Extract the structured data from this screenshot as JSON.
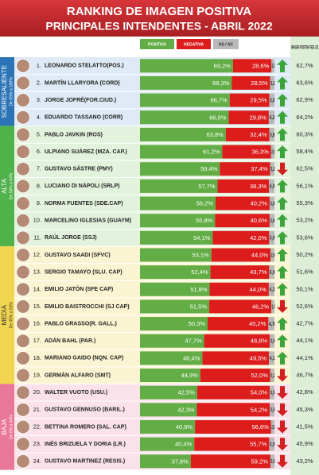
{
  "chart_data": {
    "type": "bar",
    "orientation": "horizontal",
    "stacked": true,
    "title": "RANKING DE IMAGEN POSITIVA",
    "subtitle": "PRINCIPALES INTENDENTES - ABRIL 2022",
    "categories": [
      "LEONARDO STELATTO(POS.)",
      "MARTÍN LLARYORA (CORD)",
      "JORGE JOFRÉ(FOR.CIUD.)",
      "EDUARDO TASSANO (CORR)",
      "PABLO JAVKIN (ROS)",
      "ULPIANO SUÁREZ (MZA. CAP.)",
      "GUSTAVO SÁSTRE (PMY)",
      "LUCIANO DI NÁPOLI (SRLP)",
      "NORMA FUENTES (SDE.CAP)",
      "MARCELINO IGLESIAS (GUAYM)",
      "RAÚL JORGE (SSJ)",
      "GUSTAVO SAADI (SFVC)",
      "SERGIO TAMAYO (SLU. CAP)",
      "EMILIO JATÓN (SFE CAP)",
      "EMILIO BAISTROCCHI (SJ CAP)",
      "PABLO GRASSO(R. GALL.)",
      "ADÁN BAHL (PAR.)",
      "MARIANO GAIDO (NQN. CAP)",
      "GERMÁN ALFARO (SMT)",
      "WALTER VUOTO (USU.)",
      "GUSTAVO GENNUSO (BARIL.)",
      "BETTINA ROMERO (SAL. CAP)",
      "INÉS BRIZUELA Y DORIA (LR.)",
      "GUSTAVO MARTINEZ (RESIS.)"
    ],
    "ranks": [
      "1.",
      "2.",
      "3.",
      "4.",
      "5.",
      "6.",
      "7.",
      "8.",
      "9.",
      "10.",
      "11.",
      "12.",
      "13.",
      "14.",
      "15.",
      "16.",
      "17.",
      "18.",
      "19.",
      "20.",
      "21.",
      "22.",
      "23.",
      "24."
    ],
    "xlim": [
      0,
      100
    ],
    "series": [
      {
        "name": "POSITIVA",
        "color": "#62ad45",
        "values": [
          69.2,
          68.3,
          66.7,
          66.0,
          63.8,
          61.2,
          59.4,
          57.7,
          56.2,
          55.8,
          54.1,
          53.1,
          52.4,
          51.8,
          51.5,
          50.3,
          47.7,
          46.4,
          44.9,
          42.5,
          42.3,
          40.9,
          40.4,
          37.8
        ],
        "value_labels": [
          "69,2%",
          "68,3%",
          "66,7%",
          "66,0%",
          "63,8%",
          "61,2%",
          "59,4%",
          "57,7%",
          "56,2%",
          "55,8%",
          "54,1%",
          "53,1%",
          "52,4%",
          "51,8%",
          "51,5%",
          "50,3%",
          "47,7%",
          "46,4%",
          "44,9%",
          "42,5%",
          "42,3%",
          "40,9%",
          "40,4%",
          "37,8%"
        ]
      },
      {
        "name": "NEGATIVA",
        "color": "#dd1c1c",
        "values": [
          28.6,
          28.5,
          29.5,
          29.8,
          32.4,
          36.3,
          37.4,
          38.3,
          40.2,
          40.6,
          42.0,
          44.0,
          43.7,
          44.0,
          46.2,
          45.2,
          48.8,
          49.5,
          52.0,
          54.0,
          54.2,
          56.6,
          55.7,
          59.2
        ],
        "value_labels": [
          "28,6%",
          "28,5%",
          "29,5%",
          "29,8%",
          "32,4%",
          "36,3%",
          "37,4%",
          "38,3%",
          "40,2%",
          "40,6%",
          "42,0%",
          "44,0%",
          "43,7%",
          "44,0%",
          "46,2%",
          "45,2%",
          "48,8%",
          "49,5%",
          "52,0%",
          "54,0%",
          "54,2%",
          "56,6%",
          "55,7%",
          "59,2%"
        ]
      },
      {
        "name": "NS / NC",
        "color": "#b9b9b9",
        "values": [
          2.2,
          3.2,
          3.8,
          4.2,
          3.8,
          2.5,
          3.2,
          4.0,
          3.6,
          3.6,
          3.9,
          2.9,
          3.9,
          4.2,
          2.3,
          4.5,
          3.5,
          4.1,
          3.1,
          3.5,
          3.5,
          2.5,
          3.9,
          3.0
        ],
        "value_labels": [
          "2,2",
          "3,2",
          "3,8",
          "4,2",
          "3,8",
          "2,5",
          "3,2",
          "4,0",
          "3,6",
          "3,6",
          "3,9",
          "2,9",
          "3,9",
          "4,2",
          "2,3",
          "4,5",
          "3,5",
          "4,1",
          "3,1",
          "3,5",
          "3,5",
          "2,5",
          "3,9",
          "3,0"
        ]
      }
    ],
    "trend": [
      "up",
      "up",
      "up",
      "up",
      "up",
      "up",
      "down",
      "up",
      "up",
      "up",
      "up",
      "up",
      "up",
      "up",
      "down",
      "up",
      "up",
      "up",
      "down",
      "down",
      "down",
      "down",
      "down",
      "down"
    ],
    "previous": {
      "name": "IMAGEN POSITIVA FEB. /22",
      "values": [
        62.7,
        63.6,
        62.9,
        64.2,
        60.3,
        58.4,
        62.5,
        56.1,
        55.3,
        53.2,
        53.6,
        50.2,
        51.6,
        50.1,
        52.6,
        42.7,
        44.1,
        44.1,
        46.7,
        42.8,
        45.3,
        41.5,
        45.9,
        43.2
      ],
      "value_labels": [
        "62,7%",
        "63,6%",
        "62,9%",
        "64,2%",
        "60,3%",
        "58,4%",
        "62,5%",
        "56,1%",
        "55,3%",
        "53,2%",
        "53,6%",
        "50,2%",
        "51,6%",
        "50,1%",
        "52,6%",
        "42,7%",
        "44,1%",
        "44,1%",
        "46,7%",
        "42,8%",
        "45,3%",
        "41,5%",
        "45,9%",
        "43,2%"
      ]
    },
    "groups": [
      {
        "name": "SOBRESALIENTE",
        "range": "De 65% a 100%",
        "rows": 4,
        "color": "#2b74b5",
        "tint": "#dfeaf6"
      },
      {
        "name": "ALTA",
        "range": "De 54% a 64%",
        "rows": 7,
        "color": "#4fb24a",
        "tint": "#e3f2dc"
      },
      {
        "name": "MEDIA",
        "range": "De 45% a 53%",
        "rows": 8,
        "color": "#f1d54e",
        "tint": "#fbf4d2"
      },
      {
        "name": "BAJA",
        "range": "De 0% a 44%",
        "rows": 5,
        "color": "#e9779a",
        "tint": "#fbe2ea"
      }
    ]
  }
}
